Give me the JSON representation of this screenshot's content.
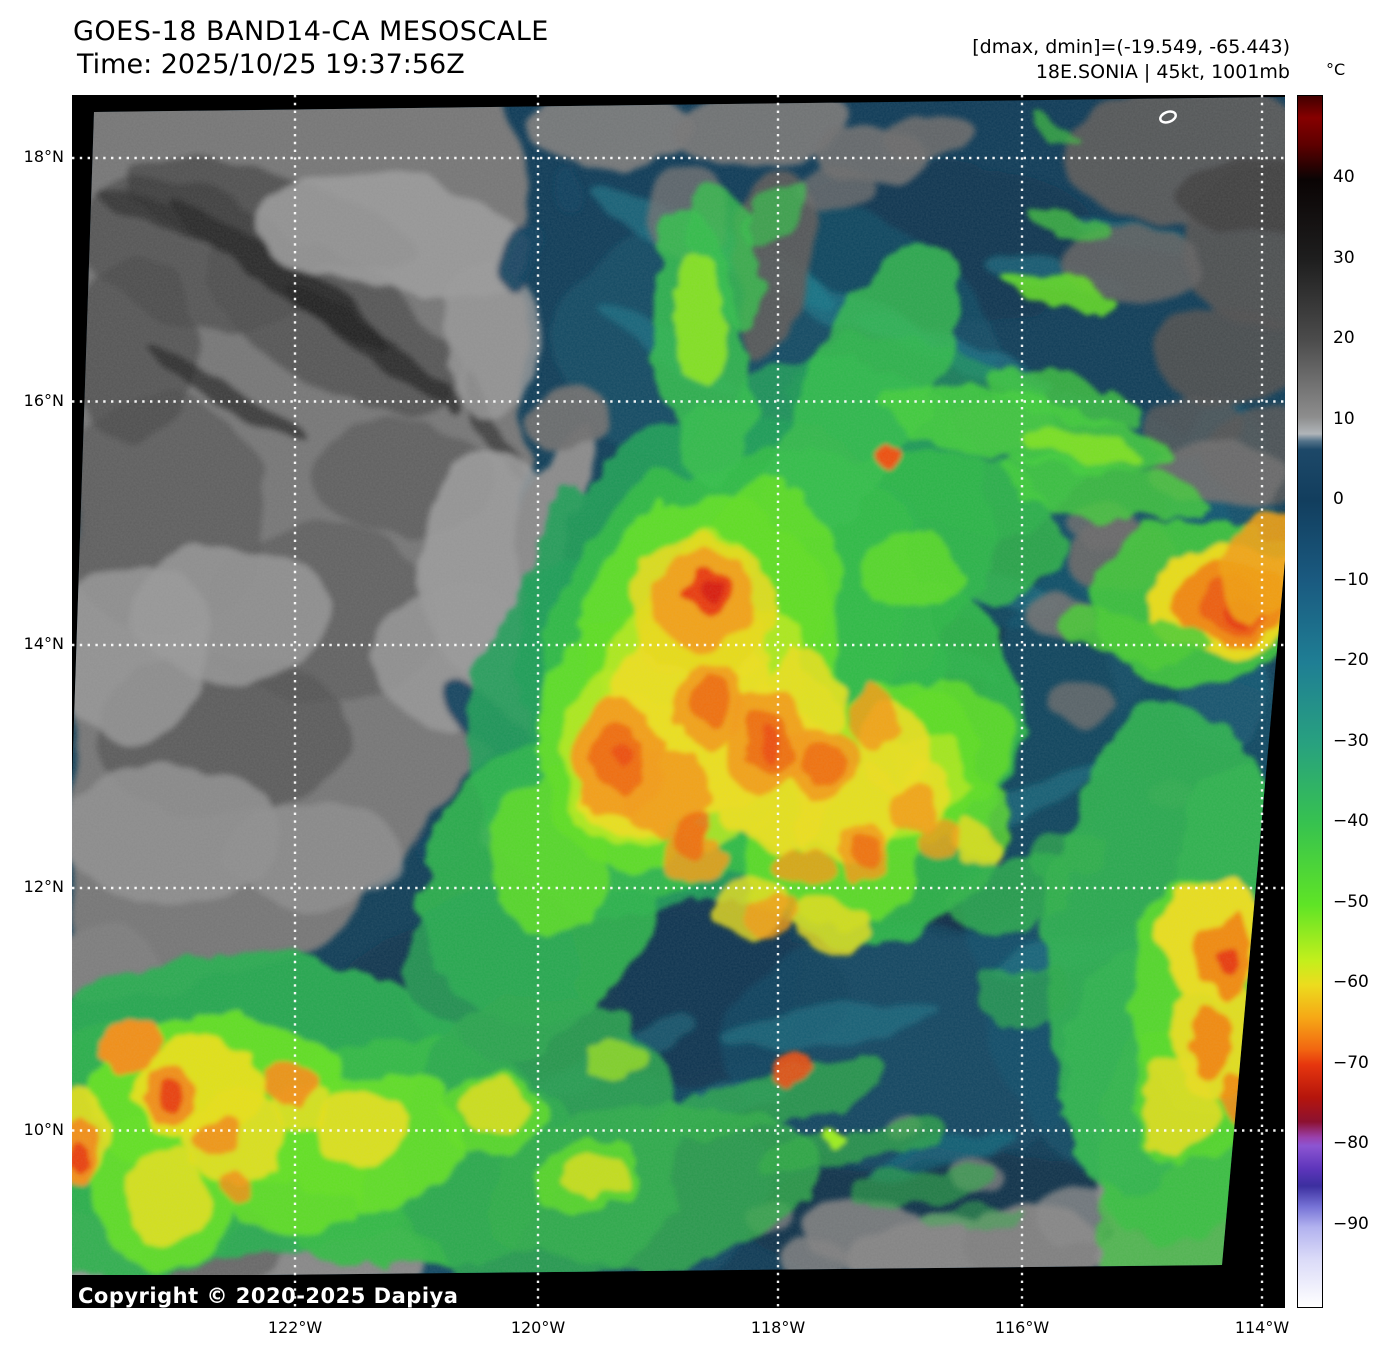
{
  "header": {
    "title": "GOES-18 BAND14-CA MESOSCALE",
    "time_line": "Time: 2025/10/25 19:37:56Z"
  },
  "annotations": {
    "range_line": "[dmax, dmin]=(-19.549, -65.443)",
    "storm_line": "18E.SONIA | 45kt, 1001mb"
  },
  "colorbar": {
    "unit": "°C",
    "ticks": [
      {
        "value": 40,
        "label": "40"
      },
      {
        "value": 30,
        "label": "30"
      },
      {
        "value": 20,
        "label": "20"
      },
      {
        "value": 10,
        "label": "10"
      },
      {
        "value": 0,
        "label": "0"
      },
      {
        "value": -10,
        "label": "−10"
      },
      {
        "value": -20,
        "label": "−20"
      },
      {
        "value": -30,
        "label": "−30"
      },
      {
        "value": -40,
        "label": "−40"
      },
      {
        "value": -50,
        "label": "−50"
      },
      {
        "value": -60,
        "label": "−60"
      },
      {
        "value": -70,
        "label": "−70"
      },
      {
        "value": -80,
        "label": "−80"
      },
      {
        "value": -90,
        "label": "−90"
      }
    ]
  },
  "axes": {
    "lat_ticks": [
      "18°N",
      "16°N",
      "14°N",
      "12°N",
      "10°N"
    ],
    "lon_ticks": [
      "122°W",
      "120°W",
      "118°W",
      "116°W",
      "114°W"
    ]
  },
  "copyright": "Copyright © 2020-2025 Dapiya"
}
